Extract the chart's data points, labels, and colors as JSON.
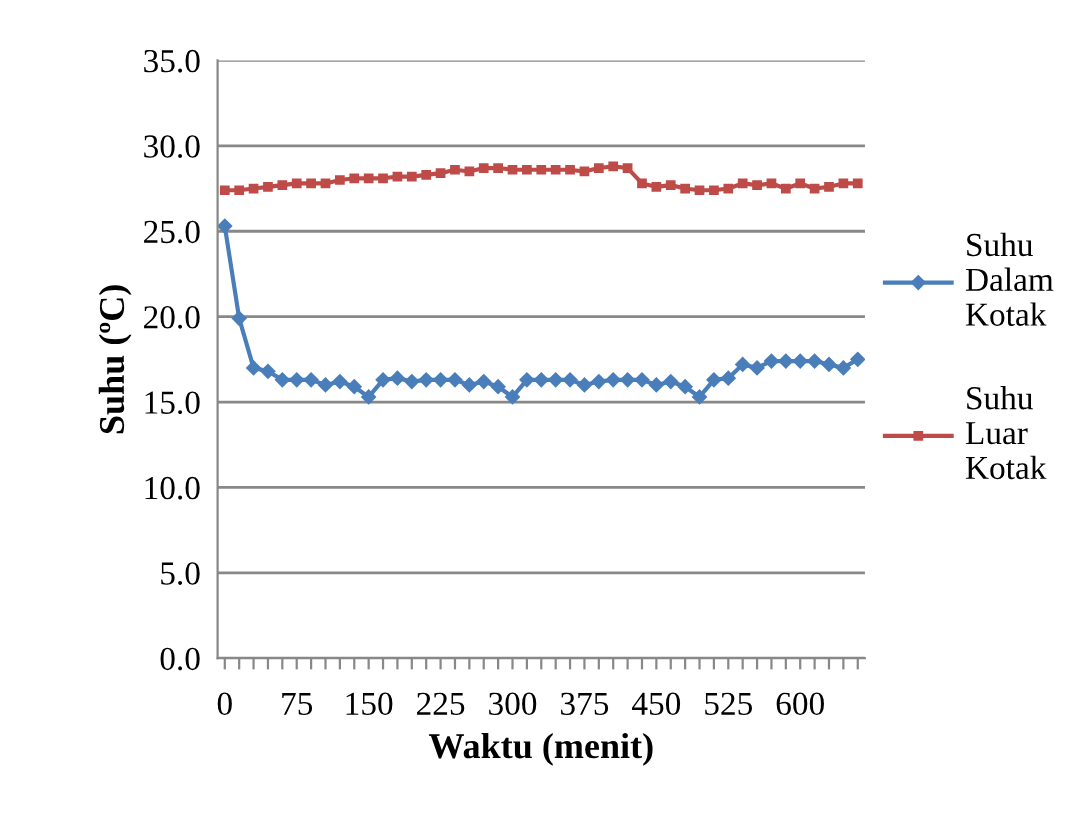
{
  "chart_data": {
    "type": "line",
    "xlabel": "Waktu (menit)",
    "ylabel": "Suhu (ºC)",
    "categories": [
      "0",
      null,
      null,
      null,
      null,
      "75",
      null,
      null,
      null,
      null,
      "150",
      null,
      null,
      null,
      null,
      "225",
      null,
      null,
      null,
      null,
      "300",
      null,
      null,
      null,
      null,
      "375",
      null,
      null,
      null,
      null,
      "450",
      null,
      null,
      null,
      null,
      "525",
      null,
      null,
      null,
      null,
      "600",
      null,
      null,
      null,
      null
    ],
    "series": [
      {
        "name": "Suhu Dalam Kotak",
        "color": "#4a7ebb",
        "marker": "diamond",
        "values": [
          25.3,
          19.9,
          17.0,
          16.8,
          16.3,
          16.3,
          16.3,
          16.0,
          16.2,
          15.9,
          15.3,
          16.3,
          16.4,
          16.2,
          16.3,
          16.3,
          16.3,
          16.0,
          16.2,
          15.9,
          15.3,
          16.3,
          16.3,
          16.3,
          16.3,
          16.0,
          16.2,
          16.3,
          16.3,
          16.3,
          16.0,
          16.2,
          15.9,
          15.3,
          16.3,
          16.4,
          17.2,
          17.0,
          17.4,
          17.4,
          17.4,
          17.4,
          17.2,
          17.0,
          17.5
        ]
      },
      {
        "name": "Suhu Luar Kotak",
        "color": "#be4b48",
        "marker": "square",
        "values": [
          27.4,
          27.4,
          27.5,
          27.6,
          27.7,
          27.8,
          27.8,
          27.8,
          28.0,
          28.1,
          28.1,
          28.1,
          28.2,
          28.2,
          28.3,
          28.4,
          28.6,
          28.5,
          28.7,
          28.7,
          28.6,
          28.6,
          28.6,
          28.6,
          28.6,
          28.5,
          28.7,
          28.8,
          28.7,
          27.8,
          27.6,
          27.7,
          27.5,
          27.4,
          27.4,
          27.5,
          27.8,
          27.7,
          27.8,
          27.5,
          27.8,
          27.5,
          27.6,
          27.8,
          27.8
        ]
      }
    ],
    "ylim": [
      0,
      35
    ],
    "yticks": [
      {
        "value": 0,
        "label": "0.0"
      },
      {
        "value": 5,
        "label": "5.0"
      },
      {
        "value": 10,
        "label": "10.0"
      },
      {
        "value": 15,
        "label": "15.0"
      },
      {
        "value": 20,
        "label": "20.0"
      },
      {
        "value": 25,
        "label": "25.0"
      },
      {
        "value": 30,
        "label": "30.0"
      },
      {
        "value": 35,
        "label": "35.0"
      }
    ],
    "grid": "y",
    "legend": "right",
    "line_style": "solid"
  }
}
